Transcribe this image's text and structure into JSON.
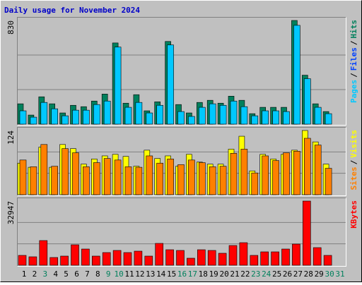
{
  "chart_data": [
    {
      "type": "bar",
      "title": "Daily usage for November 2024",
      "separator": "/",
      "categories": [
        "1",
        "2",
        "3",
        "4",
        "5",
        "6",
        "7",
        "8",
        "9",
        "10",
        "11",
        "12",
        "13",
        "14",
        "15",
        "16",
        "17",
        "18",
        "19",
        "20",
        "21",
        "22",
        "23",
        "24",
        "25",
        "26",
        "27",
        "28",
        "29",
        "30",
        "31"
      ],
      "category_colors": [
        "#000000",
        "#000000",
        "#00805c",
        "#000000",
        "#000000",
        "#000000",
        "#000000",
        "#000000",
        "#00805c",
        "#00805c",
        "#000000",
        "#000000",
        "#000000",
        "#000000",
        "#000000",
        "#00805c",
        "#00805c",
        "#000000",
        "#000000",
        "#000000",
        "#000000",
        "#000000",
        "#00805c",
        "#00805c",
        "#000000",
        "#000000",
        "#000000",
        "#000000",
        "#000000",
        "#00805c",
        "#00805c"
      ],
      "ylim": [
        0,
        830
      ],
      "yticks": [
        830
      ],
      "grid": true,
      "series": [
        {
          "name": "Hits",
          "color": "#00805c",
          "values": [
            163,
            73,
            219,
            163,
            90,
            151,
            140,
            185,
            241,
            650,
            168,
            236,
            107,
            179,
            662,
            157,
            90,
            174,
            191,
            168,
            224,
            191,
            84,
            135,
            135,
            135,
            830,
            392,
            163,
            101,
            null
          ]
        },
        {
          "name": "Files",
          "color": "#0040ff"
        },
        {
          "name": "Pages",
          "color": "#00c8ff",
          "values": [
            107,
            56,
            174,
            123,
            67,
            112,
            112,
            157,
            185,
            617,
            135,
            174,
            90,
            151,
            634,
            101,
            62,
            135,
            163,
            151,
            185,
            140,
            67,
            107,
            107,
            101,
            791,
            364,
            135,
            84,
            null
          ]
        }
      ]
    },
    {
      "type": "bar",
      "ylim": [
        0,
        124
      ],
      "yticks": [
        124
      ],
      "grid": true,
      "series": [
        {
          "name": "Visits",
          "color": "#ffff00",
          "values": [
            61,
            53,
            92,
            53,
            97,
            89,
            59,
            69,
            75,
            78,
            74,
            55,
            86,
            70,
            75,
            55,
            78,
            63,
            59,
            59,
            88,
            113,
            46,
            78,
            69,
            78,
            86,
            124,
            102,
            59,
            null
          ]
        },
        {
          "name": "Sites",
          "color": "#ff8000",
          "values": [
            67,
            54,
            97,
            55,
            89,
            81,
            54,
            62,
            70,
            67,
            54,
            53,
            75,
            61,
            69,
            58,
            67,
            62,
            54,
            55,
            80,
            88,
            42,
            75,
            66,
            81,
            84,
            109,
            96,
            51,
            null
          ]
        }
      ]
    },
    {
      "type": "bar",
      "ylim": [
        0,
        32947
      ],
      "yticks": [
        32947
      ],
      "grid": true,
      "series": [
        {
          "name": "KBytes",
          "color": "#ff0000",
          "values": [
            5069,
            4345,
            12672,
            3983,
            4707,
            10500,
            8327,
            4707,
            6517,
            7603,
            6517,
            7241,
            4707,
            11224,
            7965,
            7603,
            3620,
            7965,
            7603,
            6155,
            10138,
            11586,
            5069,
            6879,
            6879,
            8327,
            10862,
            32947,
            9051,
            5069,
            null
          ]
        }
      ]
    }
  ]
}
